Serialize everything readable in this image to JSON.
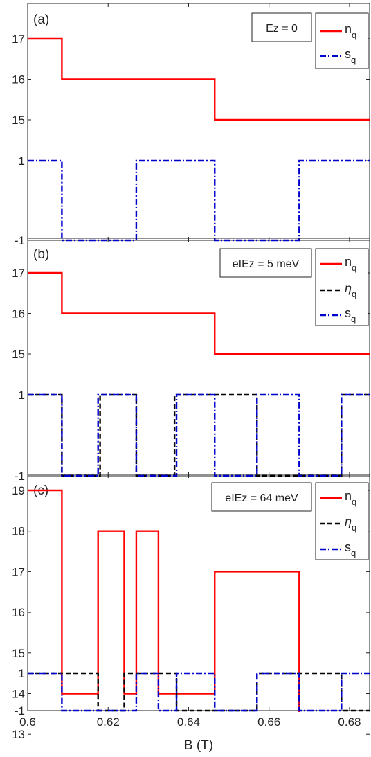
{
  "figure": {
    "xlabel": "B (T)",
    "x_ticks": [
      "0.6",
      "0.62",
      "0.64",
      "0.66",
      "0.68"
    ],
    "x_tick_values": [
      0.6,
      0.62,
      0.64,
      0.66,
      0.68
    ]
  },
  "chart_data": [
    {
      "type": "line",
      "panel_label": "(a)",
      "xlim": [
        0.6,
        0.685
      ],
      "y_ticks": [
        {
          "label": "17",
          "y": 17
        },
        {
          "label": "16",
          "y": 16
        },
        {
          "label": "15",
          "y": 15
        },
        {
          "label": "1",
          "y": 1
        },
        {
          "label": "-1",
          "y": -1
        }
      ],
      "legend": {
        "placement": "top-right",
        "annotation": "Ez = 0"
      },
      "series": [
        {
          "name": "n",
          "subscript": "q",
          "color": "#ff0000",
          "style": "solid",
          "steps": [
            {
              "x": 0.6,
              "y": 17
            },
            {
              "x": 0.6085,
              "y": 16
            },
            {
              "x": 0.6465,
              "y": 15
            },
            {
              "x": 0.685,
              "y": 15
            }
          ]
        },
        {
          "name": "s",
          "subscript": "q",
          "color": "#0000cc",
          "style": "dashdot",
          "steps": [
            {
              "x": 0.6,
              "y": 1
            },
            {
              "x": 0.6085,
              "y": -1
            },
            {
              "x": 0.627,
              "y": 1
            },
            {
              "x": 0.6465,
              "y": -1
            },
            {
              "x": 0.6675,
              "y": 1
            },
            {
              "x": 0.685,
              "y": 1
            }
          ]
        }
      ]
    },
    {
      "type": "line",
      "panel_label": "(b)",
      "xlim": [
        0.6,
        0.685
      ],
      "y_ticks": [
        {
          "label": "17",
          "y": 17
        },
        {
          "label": "16",
          "y": 16
        },
        {
          "label": "15",
          "y": 15
        },
        {
          "label": "1",
          "y": 1
        },
        {
          "label": "-1",
          "y": -1
        }
      ],
      "legend": {
        "placement": "top-right",
        "annotation": "eIEz = 5 meV"
      },
      "series": [
        {
          "name": "n",
          "subscript": "q",
          "color": "#ff0000",
          "style": "solid",
          "steps": [
            {
              "x": 0.6,
              "y": 17
            },
            {
              "x": 0.6085,
              "y": 16
            },
            {
              "x": 0.6465,
              "y": 15
            },
            {
              "x": 0.685,
              "y": 15
            }
          ]
        },
        {
          "name": "η",
          "subscript": "q",
          "color": "#000000",
          "style": "dashed",
          "steps": [
            {
              "x": 0.6,
              "y": 1
            },
            {
              "x": 0.6085,
              "y": -1
            },
            {
              "x": 0.618,
              "y": 1
            },
            {
              "x": 0.627,
              "y": -1
            },
            {
              "x": 0.6365,
              "y": 1
            },
            {
              "x": 0.657,
              "y": -1
            },
            {
              "x": 0.678,
              "y": 1
            },
            {
              "x": 0.685,
              "y": 1
            }
          ]
        },
        {
          "name": "s",
          "subscript": "q",
          "color": "#0000cc",
          "style": "dashdot",
          "steps": [
            {
              "x": 0.6,
              "y": 1
            },
            {
              "x": 0.6085,
              "y": -1
            },
            {
              "x": 0.6175,
              "y": 1
            },
            {
              "x": 0.627,
              "y": -1
            },
            {
              "x": 0.637,
              "y": 1
            },
            {
              "x": 0.6465,
              "y": -1
            },
            {
              "x": 0.657,
              "y": 1
            },
            {
              "x": 0.6675,
              "y": -1
            },
            {
              "x": 0.678,
              "y": 1
            },
            {
              "x": 0.685,
              "y": 1
            }
          ]
        }
      ]
    },
    {
      "type": "line",
      "panel_label": "(c)",
      "xlim": [
        0.6,
        0.685
      ],
      "y_ticks": [
        {
          "label": "19",
          "y": 19
        },
        {
          "label": "18",
          "y": 18
        },
        {
          "label": "17",
          "y": 17
        },
        {
          "label": "16",
          "y": 16
        },
        {
          "label": "15",
          "y": 15
        },
        {
          "label": "14",
          "y": 14
        },
        {
          "label": "13",
          "y": 13
        },
        {
          "label": "1",
          "y": 1
        },
        {
          "label": "-1",
          "y": -1
        }
      ],
      "legend": {
        "placement": "top-right",
        "annotation": "eIEz = 64 meV"
      },
      "series": [
        {
          "name": "n",
          "subscript": "q",
          "color": "#ff0000",
          "style": "solid",
          "steps": [
            {
              "x": 0.6,
              "y": 19
            },
            {
              "x": 0.6085,
              "y": 14
            },
            {
              "x": 0.6175,
              "y": 18
            },
            {
              "x": 0.624,
              "y": 14
            },
            {
              "x": 0.627,
              "y": 18
            },
            {
              "x": 0.6325,
              "y": 14
            },
            {
              "x": 0.6465,
              "y": 17
            },
            {
              "x": 0.6675,
              "y": 13
            },
            {
              "x": 0.685,
              "y": 13
            }
          ]
        },
        {
          "name": "η",
          "subscript": "q",
          "color": "#000000",
          "style": "dashed",
          "steps": [
            {
              "x": 0.6,
              "y": 1
            },
            {
              "x": 0.6175,
              "y": -1
            },
            {
              "x": 0.624,
              "y": 1
            },
            {
              "x": 0.637,
              "y": -1
            },
            {
              "x": 0.657,
              "y": 1
            },
            {
              "x": 0.678,
              "y": -1
            },
            {
              "x": 0.685,
              "y": -1
            }
          ]
        },
        {
          "name": "s",
          "subscript": "q",
          "color": "#0000cc",
          "style": "dashdot",
          "steps": [
            {
              "x": 0.6,
              "y": 1
            },
            {
              "x": 0.6085,
              "y": -1
            },
            {
              "x": 0.627,
              "y": 1
            },
            {
              "x": 0.6325,
              "y": -1
            },
            {
              "x": 0.637,
              "y": 1
            },
            {
              "x": 0.6465,
              "y": -1
            },
            {
              "x": 0.657,
              "y": 1
            },
            {
              "x": 0.6675,
              "y": -1
            },
            {
              "x": 0.678,
              "y": 1
            },
            {
              "x": 0.685,
              "y": 1
            }
          ]
        }
      ]
    }
  ]
}
